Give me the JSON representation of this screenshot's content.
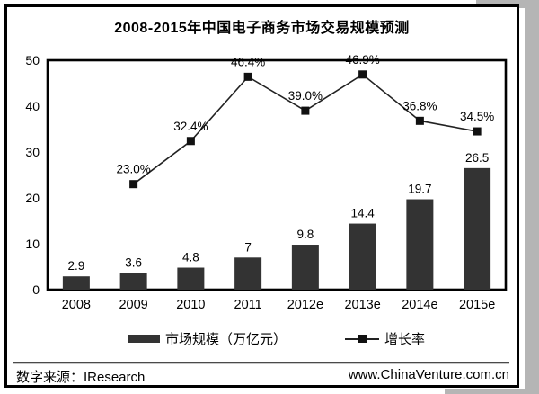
{
  "title": "2008-2015年中国电子商务市场交易规模预测",
  "chart_data": {
    "type": "bar",
    "subtype": "bar+line combo",
    "categories": [
      "2008",
      "2009",
      "2010",
      "2011",
      "2012e",
      "2013e",
      "2014e",
      "2015e"
    ],
    "series": [
      {
        "name": "市场规模（万亿元）",
        "type": "bar",
        "values": [
          2.9,
          3.6,
          4.8,
          7,
          9.8,
          14.4,
          19.7,
          26.5
        ],
        "labels": [
          "2.9",
          "3.6",
          "4.8",
          "7",
          "9.8",
          "14.4",
          "19.7",
          "26.5"
        ],
        "color": "#333333"
      },
      {
        "name": "增长率",
        "type": "line",
        "start_index": 1,
        "values": [
          23.0,
          32.4,
          46.4,
          39.0,
          46.9,
          36.8,
          34.5
        ],
        "labels": [
          "23.0%",
          "32.4%",
          "46.4%",
          "39.0%",
          "46.9%",
          "36.8%",
          "34.5%"
        ],
        "color": "#222222"
      }
    ],
    "title": "2008-2015年中国电子商务市场交易规模预测",
    "xlabel": "",
    "ylabel": "",
    "ylim": [
      0,
      50
    ],
    "yticks": [
      0,
      10,
      20,
      30,
      40,
      50
    ],
    "grid": false,
    "legend_position": "bottom"
  },
  "legend": {
    "bar_label": "市场规模（万亿元）",
    "line_label": "增长率"
  },
  "footer": {
    "source": "数字来源：IResearch",
    "website": "www.ChinaVenture.com.cn"
  },
  "colors": {
    "bar": "#333333",
    "line": "#222222",
    "marker": "#111111",
    "frame": "#000000",
    "shadow": "#b5b5b5"
  }
}
